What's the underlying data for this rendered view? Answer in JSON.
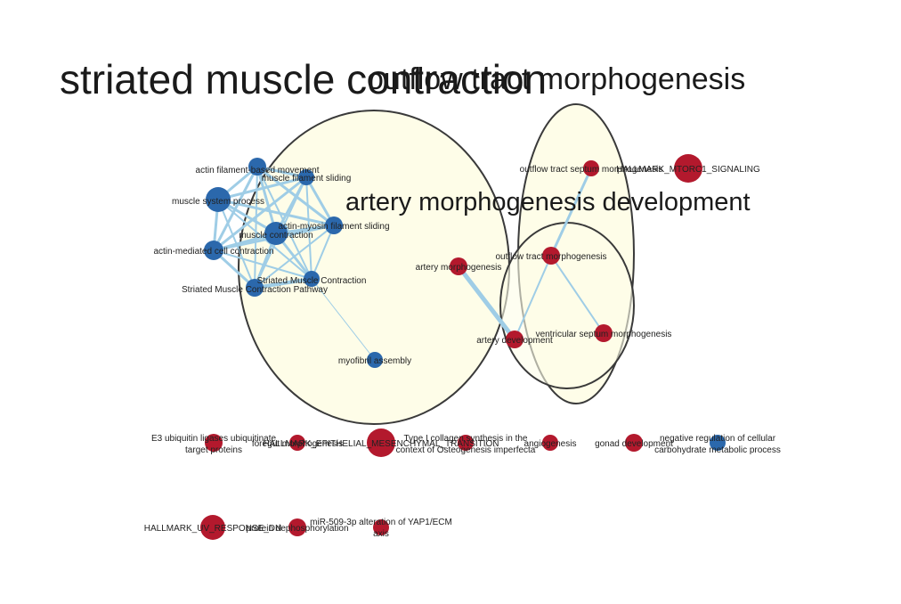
{
  "clusters": {
    "striated": "striated muscle contraction",
    "outflow": "outflow tract morphogenesis",
    "artery": "artery morphogenesis development"
  },
  "nodes": {
    "actin_filament_movement": "actin filament-based movement",
    "muscle_filament_sliding": "muscle filament sliding",
    "muscle_system_process": "muscle system process",
    "actin_myosin_sliding": "actin-myosin filament sliding",
    "muscle_contraction": "muscle contraction",
    "actin_mediated_contraction": "actin-mediated cell contraction",
    "striated_muscle_contraction": "Striated Muscle Contraction",
    "striated_pathway": "Striated Muscle Contraction Pathway",
    "myofibril_assembly": "myofibril assembly",
    "artery_morphogenesis": "artery morphogenesis",
    "artery_development": "artery development",
    "outflow_septum": "outflow tract septum morphogenesis",
    "hallmark_mtorc1": "HALLMARK_MTORC1_SIGNALING",
    "outflow_tract": "outflow tract morphogenesis",
    "ventricular_septum": "ventricular septum morphogenesis",
    "e3_line1": "E3 ubiquitin ligases ubiquitinate",
    "e3_line2": "target proteins",
    "foregut": "foregut morphogenesis",
    "hallmark_emt": "HALLMARK_EPITHELIAL_MESENCHYMAL_TRANSITION",
    "collagen_line1": "Type I collagen synthesis in the",
    "collagen_line2": "context of Osteogenesis imperfecta",
    "angiogenesis": "angiogenesis",
    "gonad": "gonad development",
    "neg_reg_line1": "negative regulation of cellular",
    "neg_reg_line2": "carbohydrate metabolic process",
    "hallmark_uv": "HALLMARK_UV_RESPONSE_DN",
    "dephos": "protein dephosphorylation",
    "mir_line1": "miR-509-3p alteration of YAP1/ECM",
    "mir_line2": "axis"
  },
  "colors": {
    "blue_node": "#2b68ac",
    "red_node": "#b3192d",
    "edge": "#9fcde6",
    "cluster_fill": "#fefde8",
    "cluster_stroke": "#3a3a3a"
  }
}
